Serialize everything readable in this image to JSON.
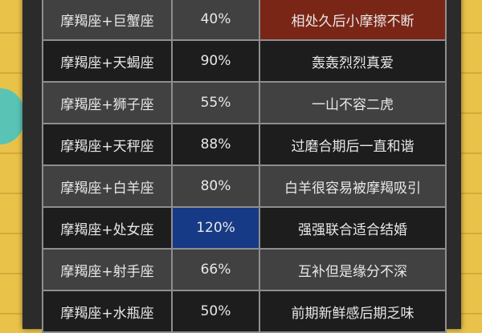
{
  "table": {
    "rows": [
      {
        "pair": "摩羯座+巨蟹座",
        "rate": "40%",
        "note": "相处久后小摩擦不断",
        "highlight": "note"
      },
      {
        "pair": "摩羯座+天蝎座",
        "rate": "90%",
        "note": "轰轰烈烈真爱"
      },
      {
        "pair": "摩羯座+狮子座",
        "rate": "55%",
        "note": "一山不容二虎"
      },
      {
        "pair": "摩羯座+天秤座",
        "rate": "88%",
        "note": "过磨合期后一直和谐"
      },
      {
        "pair": "摩羯座+白羊座",
        "rate": "80%",
        "note": "白羊很容易被摩羯吸引"
      },
      {
        "pair": "摩羯座+处女座",
        "rate": "120%",
        "note": "强强联合适合结婚",
        "highlight": "rate"
      },
      {
        "pair": "摩羯座+射手座",
        "rate": "66%",
        "note": "互补但是缘分不深"
      },
      {
        "pair": "摩羯座+水瓶座",
        "rate": "50%",
        "note": "前期新鲜感后期乏味"
      }
    ]
  },
  "colors": {
    "background": "#e9c24a",
    "row_light": "#414141",
    "row_dark": "#1d1d1d",
    "highlight_red": "#7a2616",
    "highlight_blue": "#173a86"
  }
}
